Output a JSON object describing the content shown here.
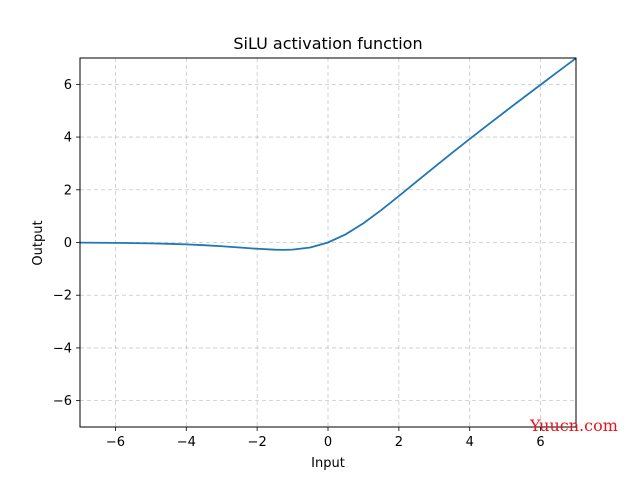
{
  "chart_data": {
    "type": "line",
    "title": "SiLU activation function",
    "xlabel": "Input",
    "ylabel": "Output",
    "xlim": [
      -7,
      7
    ],
    "ylim": [
      -7,
      7
    ],
    "xticks": [
      -6,
      -4,
      -2,
      0,
      2,
      4,
      6
    ],
    "yticks": [
      -6,
      -4,
      -2,
      0,
      2,
      4,
      6
    ],
    "grid": true,
    "grid_style": "dashed",
    "line_color": "#1f77b4",
    "series": [
      {
        "x": [
          -7,
          -6.5,
          -6,
          -5.5,
          -5,
          -4.5,
          -4,
          -3.5,
          -3,
          -2.5,
          -2,
          -1.5,
          -1.28,
          -1,
          -0.5,
          0,
          0.5,
          1,
          1.5,
          2,
          2.5,
          3,
          3.5,
          4,
          4.5,
          5,
          5.5,
          6,
          6.5,
          7
        ],
        "y": [
          -0.006,
          -0.0098,
          -0.0148,
          -0.0224,
          -0.0335,
          -0.0497,
          -0.0719,
          -0.1025,
          -0.1423,
          -0.1896,
          -0.2384,
          -0.2736,
          -0.2785,
          -0.2689,
          -0.1888,
          0,
          0.3112,
          0.7311,
          1.2264,
          1.7616,
          2.3104,
          2.8577,
          3.3975,
          3.9281,
          4.4503,
          4.9665,
          5.4776,
          5.9852,
          6.4902,
          6.9936
        ]
      }
    ]
  },
  "watermark": "Yuucn.com"
}
